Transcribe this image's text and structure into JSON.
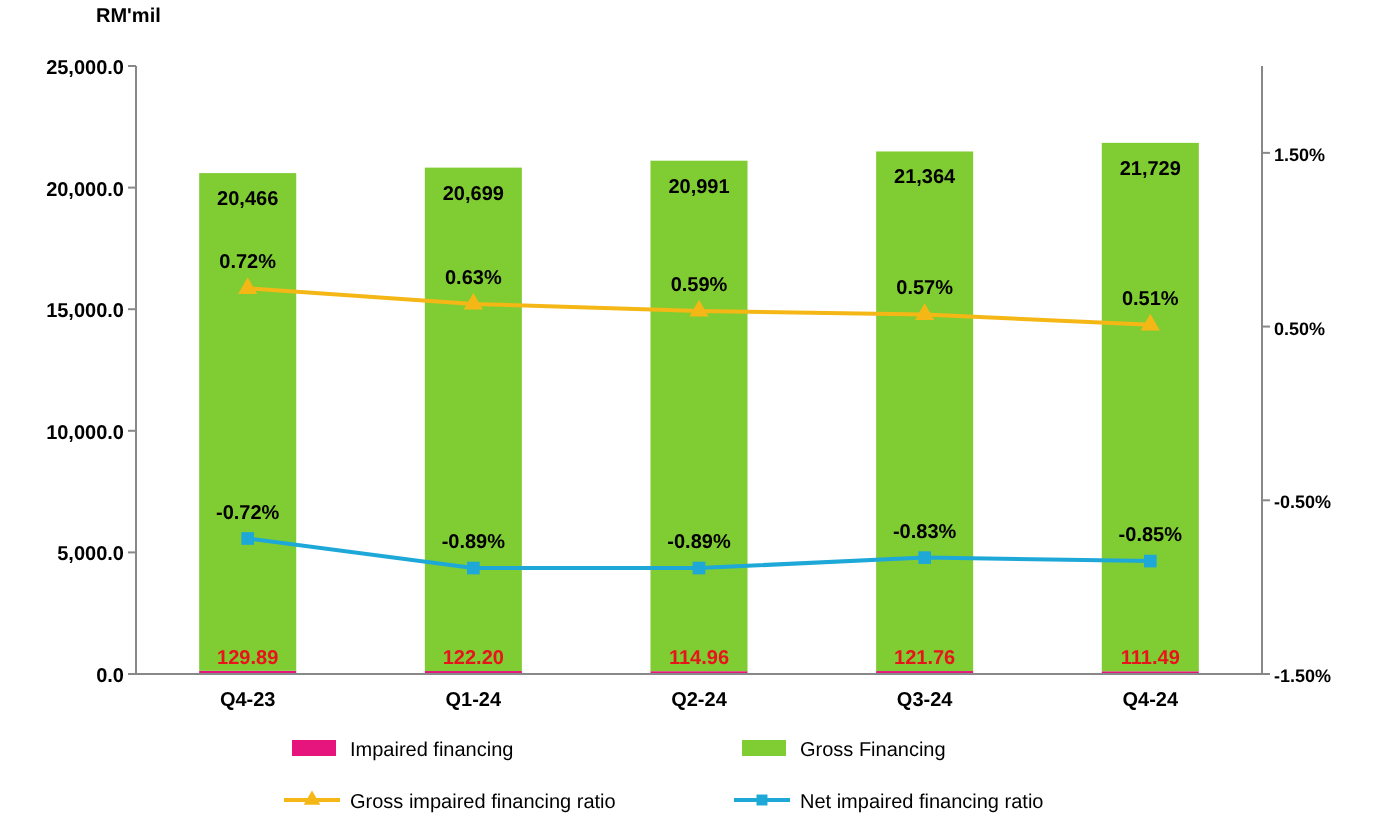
{
  "chart_data": {
    "type": "bar",
    "ylabel": "RM'mil",
    "categories": [
      "Q4-23",
      "Q1-24",
      "Q2-24",
      "Q3-24",
      "Q4-24"
    ],
    "stacked": true,
    "series": [
      {
        "name": "Impaired financing",
        "color": "#e6157d",
        "values": [
          129.89,
          122.2,
          114.96,
          121.76,
          111.49
        ],
        "value_labels": [
          "129.89",
          "122.20",
          "114.96",
          "121.76",
          "111.49"
        ]
      },
      {
        "name": "Gross Financing",
        "color": "#80cc33",
        "values": [
          20466,
          20699,
          20991,
          21364,
          21729
        ],
        "value_labels": [
          "20,466",
          "20,699",
          "20,991",
          "21,364",
          "21,729"
        ]
      },
      {
        "name": "Gross impaired financing ratio",
        "type": "line",
        "axis": "y2",
        "marker": "triangle",
        "color": "#f5b716",
        "values": [
          0.72,
          0.63,
          0.59,
          0.57,
          0.51
        ],
        "value_labels": [
          "0.72%",
          "0.63%",
          "0.59%",
          "0.57%",
          "0.51%"
        ]
      },
      {
        "name": "Net impaired financing ratio",
        "type": "line",
        "axis": "y2",
        "marker": "square",
        "color": "#1ea8d8",
        "values": [
          -0.72,
          -0.89,
          -0.89,
          -0.83,
          -0.85
        ],
        "value_labels": [
          "-0.72%",
          "-0.89%",
          "-0.89%",
          "-0.83%",
          "-0.85%"
        ]
      }
    ],
    "ylim": [
      0,
      25000
    ],
    "yticks": [
      {
        "value": 0,
        "label": "0.0"
      },
      {
        "value": 5000,
        "label": "5,000.0"
      },
      {
        "value": 10000,
        "label": "10,000.0"
      },
      {
        "value": 15000,
        "label": "15,000.0"
      },
      {
        "value": 20000,
        "label": "20,000.0"
      },
      {
        "value": 25000,
        "label": "25,000.0"
      }
    ],
    "y2lim": [
      -1.5,
      2.0
    ],
    "y2ticks": [
      {
        "value": 1.5,
        "label": "1.50%"
      },
      {
        "value": 0.5,
        "label": "0.50%"
      },
      {
        "value": -0.5,
        "label": "-0.50%"
      },
      {
        "value": -1.5,
        "label": "-1.50%"
      }
    ],
    "legend": "bottom"
  }
}
